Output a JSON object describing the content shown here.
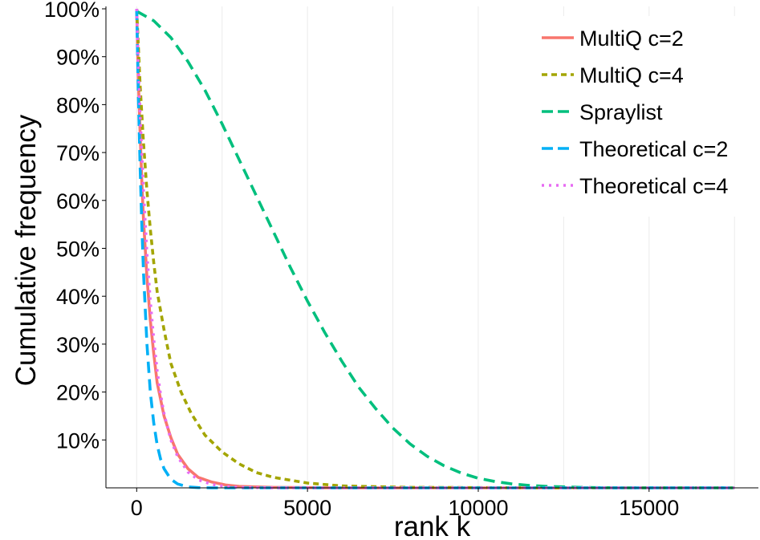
{
  "chart_data": {
    "type": "line",
    "title": "",
    "xlabel": "rank k",
    "ylabel": "Cumulative frequency",
    "xlim": [
      -900,
      18200
    ],
    "ylim": [
      0,
      1.005
    ],
    "x_ticks": [
      0,
      5000,
      10000,
      15000
    ],
    "x_tick_labels": [
      "0",
      "5000",
      "10000",
      "15000"
    ],
    "y_ticks": [
      0.1,
      0.2,
      0.3,
      0.4,
      0.5,
      0.6,
      0.7,
      0.8,
      0.9,
      1.0
    ],
    "y_tick_labels": [
      "10%",
      "20%",
      "30%",
      "40%",
      "50%",
      "60%",
      "70%",
      "80%",
      "90%",
      "100%"
    ],
    "grid": "vertical",
    "legend_position": "top-right",
    "series": [
      {
        "name": "MultiQ c=2",
        "color": "#F8766D",
        "dash": "solid",
        "x": [
          0,
          50,
          100,
          150,
          200,
          300,
          400,
          500,
          600,
          800,
          1000,
          1200,
          1500,
          1800,
          2200,
          2600,
          3000,
          4000,
          6000,
          10000,
          17500
        ],
        "y": [
          1.0,
          0.85,
          0.74,
          0.64,
          0.56,
          0.44,
          0.35,
          0.28,
          0.22,
          0.15,
          0.105,
          0.07,
          0.04,
          0.022,
          0.012,
          0.006,
          0.003,
          0.001,
          0.0,
          0.0,
          0.0
        ]
      },
      {
        "name": "MultiQ c=4",
        "color": "#A3A500",
        "dash": "dotted-short",
        "x": [
          0,
          100,
          200,
          300,
          400,
          500,
          600,
          800,
          1000,
          1300,
          1600,
          2000,
          2500,
          3000,
          3500,
          4000,
          5000,
          6000,
          8000,
          12000,
          17500
        ],
        "y": [
          1.0,
          0.84,
          0.72,
          0.62,
          0.54,
          0.47,
          0.41,
          0.33,
          0.26,
          0.2,
          0.155,
          0.11,
          0.075,
          0.05,
          0.032,
          0.022,
          0.01,
          0.004,
          0.001,
          0.0,
          0.0
        ]
      },
      {
        "name": "Spraylist",
        "color": "#00BF7D",
        "dash": "dashed",
        "x": [
          0,
          500,
          1000,
          1500,
          2000,
          2500,
          3000,
          3500,
          4000,
          4500,
          5000,
          5500,
          6000,
          6500,
          7000,
          7500,
          8000,
          8500,
          9000,
          9500,
          10000,
          10500,
          11000,
          11500,
          12000,
          13000,
          14000,
          15000,
          16000,
          17500
        ],
        "y": [
          0.995,
          0.975,
          0.94,
          0.89,
          0.83,
          0.76,
          0.685,
          0.61,
          0.535,
          0.46,
          0.39,
          0.325,
          0.265,
          0.21,
          0.165,
          0.125,
          0.092,
          0.066,
          0.046,
          0.031,
          0.02,
          0.013,
          0.008,
          0.005,
          0.003,
          0.001,
          0.0,
          0.0,
          0.0,
          0.0
        ]
      },
      {
        "name": "Theoretical c=2",
        "color": "#00B0F6",
        "dash": "dashed",
        "x": [
          0,
          50,
          100,
          150,
          200,
          300,
          400,
          500,
          600,
          700,
          800,
          1000,
          1200,
          1500,
          1800,
          2200,
          3000,
          5000,
          17500
        ],
        "y": [
          1.0,
          0.82,
          0.67,
          0.55,
          0.45,
          0.3,
          0.2,
          0.135,
          0.09,
          0.06,
          0.04,
          0.018,
          0.008,
          0.002,
          0.0005,
          0.0,
          0.0,
          0.0,
          0.0
        ]
      },
      {
        "name": "Theoretical c=4",
        "color": "#E76BF3",
        "dash": "dotted",
        "x": [
          0,
          50,
          100,
          200,
          300,
          400,
          500,
          600,
          700,
          800,
          1000,
          1200,
          1500,
          1800,
          2200,
          2600,
          3000,
          4000,
          17500
        ],
        "y": [
          1.0,
          0.88,
          0.78,
          0.62,
          0.49,
          0.39,
          0.31,
          0.245,
          0.195,
          0.155,
          0.1,
          0.065,
          0.033,
          0.017,
          0.007,
          0.003,
          0.001,
          0.0,
          0.0
        ]
      }
    ]
  }
}
